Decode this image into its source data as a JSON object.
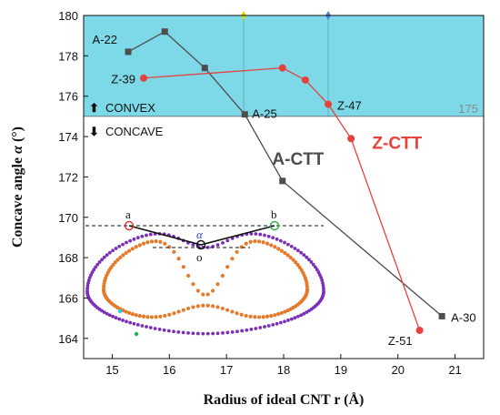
{
  "chart_data": {
    "type": "line",
    "xlabel": "Radius of ideal CNT r (Å)",
    "ylabel_prefix": "Concave angle ",
    "ylabel_symbol": "α",
    "ylabel_suffix": " (°)",
    "xlim": [
      14.5,
      21.5
    ],
    "ylim": [
      163,
      180
    ],
    "xticks": [
      15,
      16,
      17,
      18,
      19,
      20,
      21
    ],
    "yticks": [
      164,
      166,
      168,
      170,
      172,
      174,
      176,
      178,
      180
    ],
    "threshold": {
      "value": 175,
      "label": "175"
    },
    "regions": {
      "convex_label": "CONVEX",
      "concave_label": "CONCAVE"
    },
    "vlines": [
      17.3,
      18.78
    ],
    "series": [
      {
        "name": "A-CTT",
        "color": "#4d4d4d",
        "marker": "square",
        "x": [
          15.28,
          15.92,
          16.62,
          17.32,
          17.98,
          20.77
        ],
        "y": [
          178.2,
          179.2,
          177.4,
          175.1,
          171.8,
          165.1
        ],
        "point_labels": [
          "A-22",
          "",
          "",
          "A-25",
          "",
          "A-30"
        ]
      },
      {
        "name": "Z-CTT",
        "color": "#e8413c",
        "marker": "circle",
        "x": [
          15.55,
          17.98,
          18.38,
          18.78,
          19.18,
          20.38
        ],
        "y": [
          176.9,
          177.4,
          176.8,
          175.6,
          173.9,
          164.4
        ],
        "point_labels": [
          "Z-39",
          "",
          "",
          "Z-47",
          "",
          "Z-51"
        ]
      }
    ],
    "inset": {
      "label_a": "a",
      "label_b": "b",
      "label_o": "o",
      "label_alpha": "α"
    }
  }
}
